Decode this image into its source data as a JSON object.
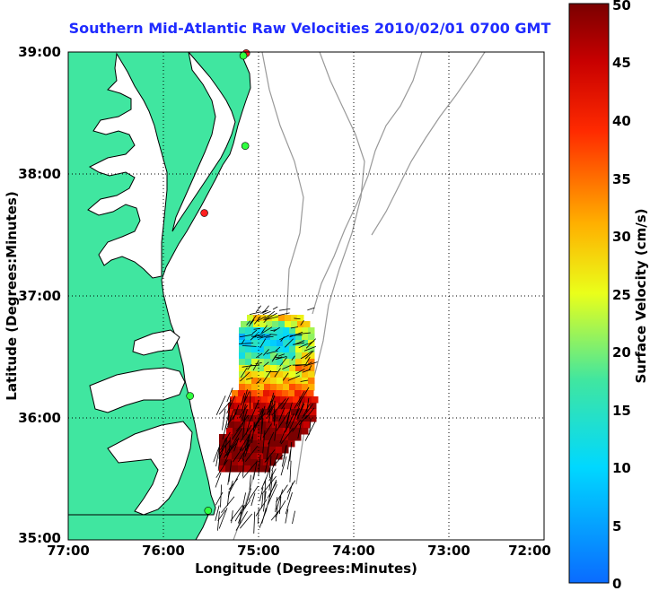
{
  "title": "Southern Mid-Atlantic Raw Velocities 2010/02/01 0700 GMT",
  "xlabel": "Longitude (Degrees:Minutes)",
  "ylabel": "Latitude (Degrees:Minutes)",
  "colorbar": {
    "label": "Surface Velocity (cm/s)",
    "ticks": [
      "50",
      "45",
      "40",
      "35",
      "30",
      "25",
      "20",
      "15",
      "10",
      "5",
      "0"
    ],
    "range": [
      0,
      50
    ]
  },
  "x_ticks": [
    "77:00",
    "76:00",
    "75:00",
    "74:00",
    "73:00",
    "72:00"
  ],
  "y_ticks": [
    "39:00",
    "38:00",
    "37:00",
    "36:00",
    "35:00"
  ],
  "colors": {
    "land": "#40e6a0",
    "coastline": "#000000",
    "bathymetry": "#999999",
    "title": "#1f2bff"
  },
  "chart_data": {
    "type": "map",
    "xlim": [
      -77,
      -72
    ],
    "ylim": [
      35,
      39
    ],
    "grid": true,
    "stations": [
      {
        "lon": -75.13,
        "lat": 38.99,
        "status": "red"
      },
      {
        "lon": -75.16,
        "lat": 38.97,
        "status": "green"
      },
      {
        "lon": -75.14,
        "lat": 38.23,
        "status": "green"
      },
      {
        "lon": -75.57,
        "lat": 37.68,
        "status": "red"
      },
      {
        "lon": -75.72,
        "lat": 36.18,
        "status": "green"
      },
      {
        "lon": -75.53,
        "lat": 35.24,
        "status": "green"
      }
    ]
  }
}
